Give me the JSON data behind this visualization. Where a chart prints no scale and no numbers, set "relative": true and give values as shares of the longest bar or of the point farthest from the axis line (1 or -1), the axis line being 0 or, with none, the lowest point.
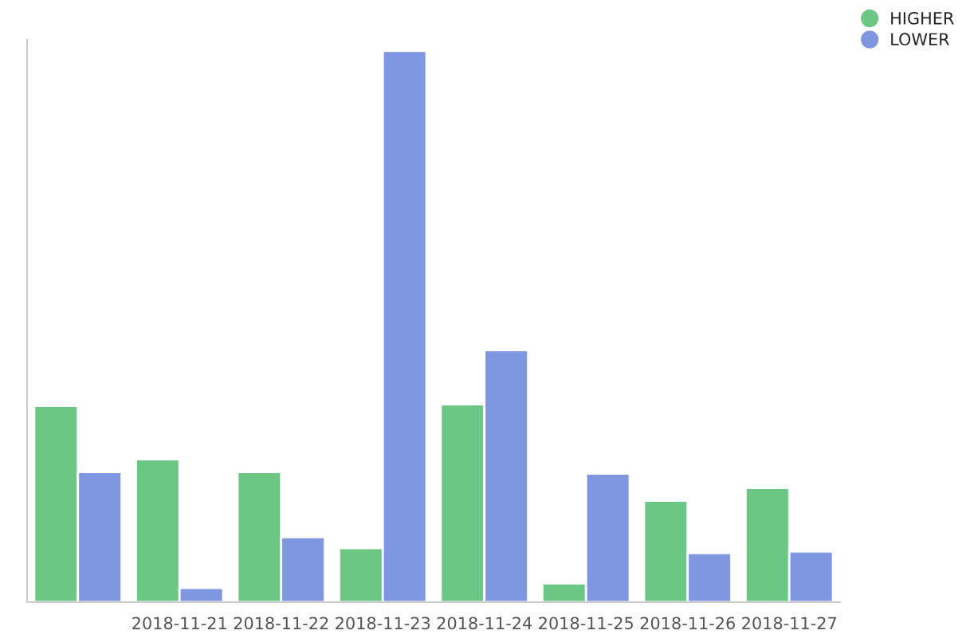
{
  "chart_data": {
    "type": "bar",
    "relative": true,
    "categories": [
      null,
      "2018-11-21",
      "2018-11-22",
      "2018-11-23",
      "2018-11-24",
      "2018-11-25",
      "2018-11-26",
      "2018-11-27"
    ],
    "series": [
      {
        "name": "HIGHER",
        "color": "#6cc785",
        "values": [
          0.356,
          0.259,
          0.236,
          0.098,
          0.359,
          0.034,
          0.184,
          0.207
        ]
      },
      {
        "name": "LOWER",
        "color": "#7f96e0",
        "values": [
          0.236,
          0.026,
          0.118,
          1,
          0.457,
          0.233,
          0.089,
          0.092
        ]
      }
    ],
    "legend": "top right",
    "grid": false
  }
}
